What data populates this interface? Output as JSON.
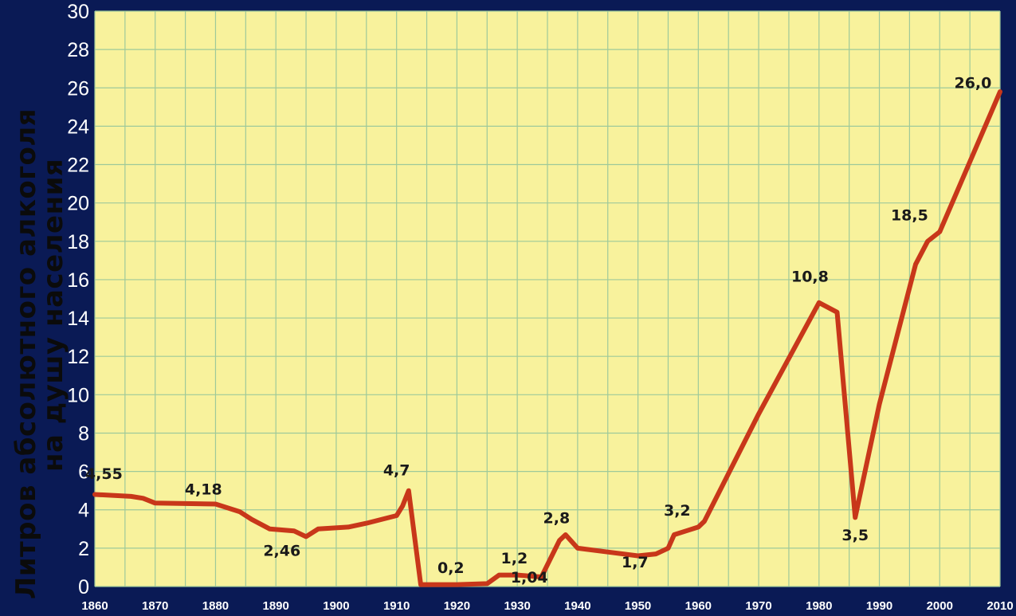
{
  "chart_data": {
    "type": "line",
    "ylabel": [
      "Литров абсолютного алкоголя",
      "на душу населения"
    ],
    "xlim": [
      1860,
      2010
    ],
    "ylim": [
      0,
      30
    ],
    "grid": true,
    "x_ticks": [
      1860,
      1870,
      1880,
      1890,
      1900,
      1910,
      1920,
      1930,
      1940,
      1950,
      1960,
      1970,
      1980,
      1990,
      2000,
      2010
    ],
    "y_ticks": [
      0,
      2,
      4,
      6,
      8,
      10,
      12,
      14,
      16,
      18,
      20,
      22,
      24,
      26,
      28,
      30
    ],
    "series": [
      {
        "color": "#c8371a",
        "points": [
          [
            1860,
            4.8
          ],
          [
            1866,
            4.7
          ],
          [
            1868,
            4.6
          ],
          [
            1870,
            4.35
          ],
          [
            1880,
            4.3
          ],
          [
            1884,
            3.9
          ],
          [
            1886,
            3.5
          ],
          [
            1889,
            3.0
          ],
          [
            1893,
            2.9
          ],
          [
            1895,
            2.6
          ],
          [
            1897,
            3.0
          ],
          [
            1902,
            3.1
          ],
          [
            1905,
            3.3
          ],
          [
            1910,
            3.7
          ],
          [
            1911,
            4.2
          ],
          [
            1912,
            5.0
          ],
          [
            1914,
            0.1
          ],
          [
            1920,
            0.1
          ],
          [
            1925,
            0.15
          ],
          [
            1927,
            0.6
          ],
          [
            1930,
            0.6
          ],
          [
            1934,
            0.5
          ],
          [
            1937,
            2.4
          ],
          [
            1938,
            2.7
          ],
          [
            1940,
            2.0
          ],
          [
            1945,
            1.8
          ],
          [
            1950,
            1.6
          ],
          [
            1953,
            1.7
          ],
          [
            1955,
            2.0
          ],
          [
            1956,
            2.7
          ],
          [
            1958,
            2.9
          ],
          [
            1960,
            3.1
          ],
          [
            1961,
            3.4
          ],
          [
            1970,
            9.0
          ],
          [
            1980,
            14.8
          ],
          [
            1983,
            14.3
          ],
          [
            1986,
            3.6
          ],
          [
            1990,
            9.5
          ],
          [
            1996,
            16.8
          ],
          [
            1998,
            18.0
          ],
          [
            2000,
            18.5
          ],
          [
            2010,
            25.8
          ]
        ]
      }
    ],
    "annotations": [
      {
        "text": "4,55",
        "x": 1861.5,
        "y": 5.6
      },
      {
        "text": "4,18",
        "x": 1878,
        "y": 4.8
      },
      {
        "text": "2,46",
        "x": 1891,
        "y": 1.6
      },
      {
        "text": "4,7",
        "x": 1910,
        "y": 5.8
      },
      {
        "text": "0,2",
        "x": 1919,
        "y": 0.7
      },
      {
        "text": "1,2",
        "x": 1929.5,
        "y": 1.2
      },
      {
        "text": "1,04",
        "x": 1932,
        "y": 0.2
      },
      {
        "text": "2,8",
        "x": 1936.5,
        "y": 3.3
      },
      {
        "text": "1,7",
        "x": 1949.5,
        "y": 1.0
      },
      {
        "text": "3,2",
        "x": 1956.5,
        "y": 3.7
      },
      {
        "text": "10,8",
        "x": 1978.5,
        "y": 15.9
      },
      {
        "text": "3,5",
        "x": 1986,
        "y": 2.4
      },
      {
        "text": "18,5",
        "x": 1995,
        "y": 19.1
      },
      {
        "text": "26,0",
        "x": 2005.5,
        "y": 26.0
      }
    ]
  }
}
